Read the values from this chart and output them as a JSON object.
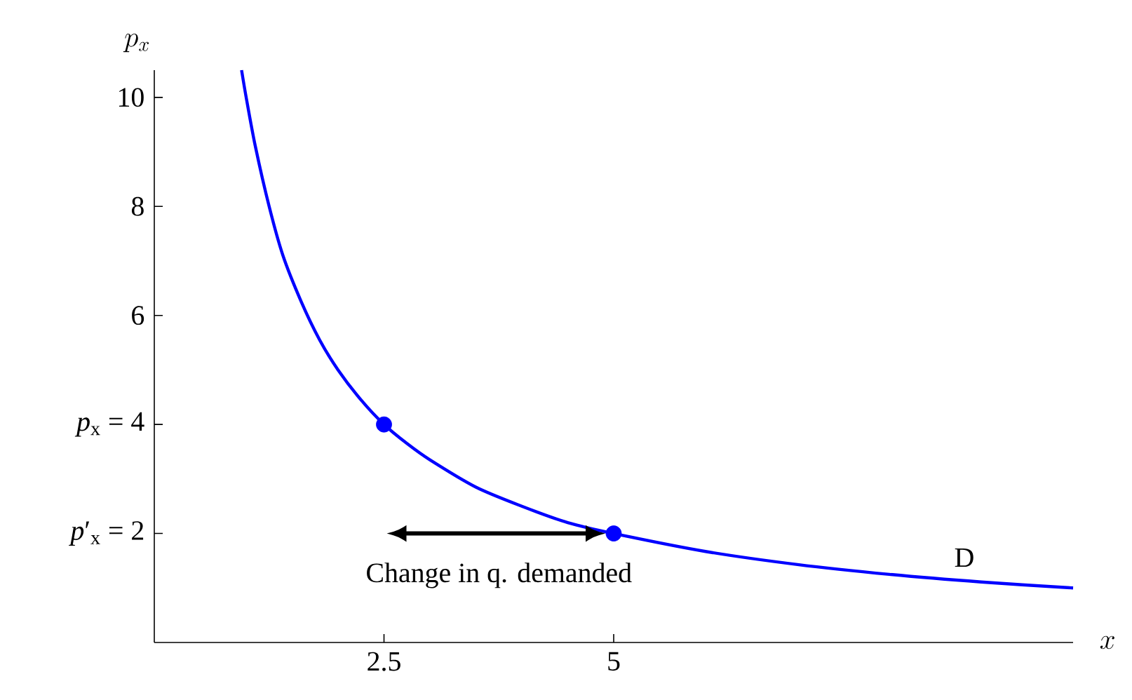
{
  "chart_data": {
    "type": "line",
    "xlabel": "x",
    "ylabel": "p_x",
    "xlim": [
      0,
      10
    ],
    "ylim": [
      0,
      10.5
    ],
    "xticks": [
      2.5,
      5
    ],
    "yticks": [
      {
        "value": 2,
        "label": "*p*′$_{x}$ = 2"
      },
      {
        "value": 4,
        "label": "*p*$_{x}$ = 4"
      },
      6,
      8,
      10
    ],
    "grid": false,
    "series": [
      {
        "name": "D",
        "color": "#0000ff",
        "line_style": "solid",
        "marker": "none",
        "x": [
          0.95,
          1,
          1.1,
          1.25,
          1.4,
          1.6,
          1.8,
          2,
          2.25,
          2.5,
          2.75,
          3,
          3.5,
          4,
          4.5,
          5,
          6,
          7,
          8,
          9,
          10
        ],
        "values": [
          10.5,
          10,
          9.1,
          8,
          7.1,
          6.25,
          5.55,
          5,
          4.45,
          4,
          3.65,
          3.35,
          2.85,
          2.5,
          2.2,
          2,
          1.67,
          1.43,
          1.25,
          1.11,
          1.0
        ]
      },
      {
        "type": "scatter",
        "color": "#0000ff",
        "marker": "circle",
        "x": [
          2.5,
          5
        ],
        "values": [
          4,
          2
        ]
      }
    ],
    "annotations": [
      "Change in q. demanded"
    ]
  }
}
